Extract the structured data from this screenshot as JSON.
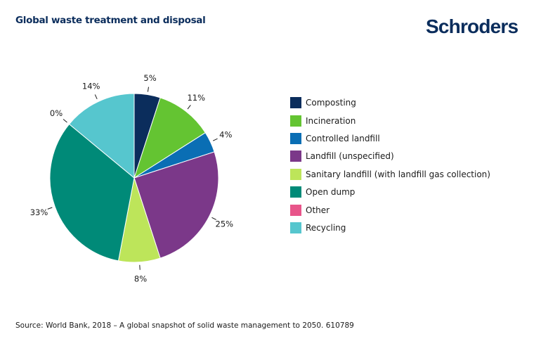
{
  "title": "Global waste treatment and disposal",
  "logo": "Schroders",
  "source": "Source: World Bank, 2018 – A global snapshot of solid waste management to 2050. 610789",
  "chart_data": {
    "type": "pie",
    "title": "Global waste treatment and disposal",
    "categories": [
      "Composting",
      "Incineration",
      "Controlled landfill",
      "Landfill (unspecified)",
      "Sanitary landfill (with landfill gas collection)",
      "Open dump",
      "Other",
      "Recycling"
    ],
    "values": [
      5,
      11,
      4,
      25,
      8,
      33,
      0,
      14
    ],
    "data_labels": [
      "5%",
      "11%",
      "4%",
      "25%",
      "8%",
      "33%",
      "0%",
      "14%"
    ],
    "colors": [
      "#0b2d5c",
      "#64c432",
      "#0a6eb4",
      "#7b3889",
      "#bde55a",
      "#008a78",
      "#e8558a",
      "#56c6ce"
    ],
    "start_angle": "top, clockwise",
    "legend_placement": "right"
  }
}
